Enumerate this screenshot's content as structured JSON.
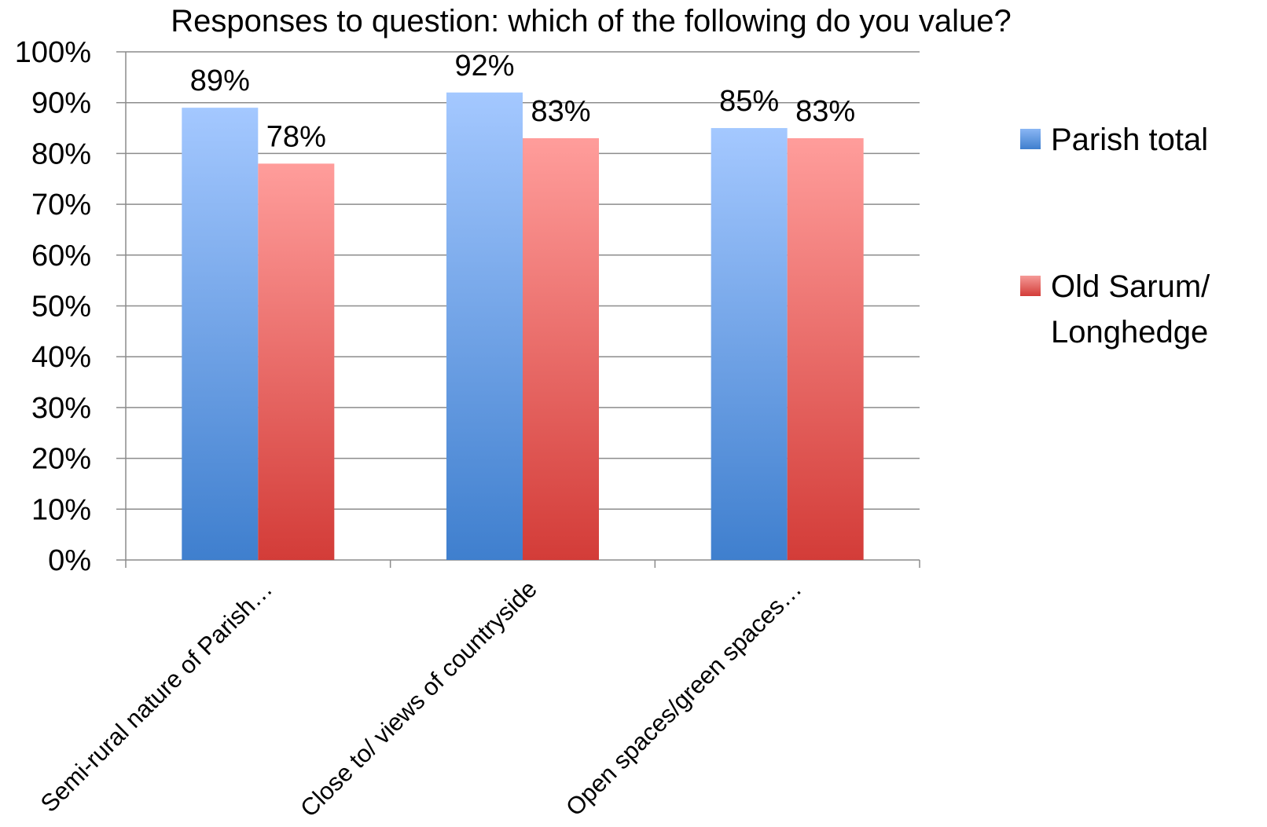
{
  "colors": {
    "series": [
      {
        "top": "#a4c8ff",
        "bottom": "#3f7fce",
        "legend_top": "#8ab6f4",
        "legend_bottom": "#3f7fce"
      },
      {
        "top": "#ff9d9b",
        "bottom": "#d33c38",
        "legend_top": "#f59a97",
        "legend_bottom": "#d33c38"
      }
    ],
    "grid": "#8c8c8c",
    "axis": "#8c8c8c"
  },
  "chart_data": {
    "type": "bar",
    "title": "Responses to question: which of the following do you value?",
    "xlabel": "",
    "ylabel": "",
    "ylim": [
      0,
      100
    ],
    "yticks": [
      "0%",
      "10%",
      "20%",
      "30%",
      "40%",
      "50%",
      "60%",
      "70%",
      "80%",
      "90%",
      "100%"
    ],
    "grid": true,
    "legend_position": "right",
    "categories": [
      "Semi-rural nature of Parish…",
      "Close to/ views of countryside",
      "Open spaces/green spaces…"
    ],
    "series": [
      {
        "name": "Parish total",
        "values": [
          89,
          92,
          85
        ],
        "labels": [
          "89%",
          "92%",
          "85%"
        ]
      },
      {
        "name": "Old Sarum/ Longhedge",
        "name_lines": [
          "Old Sarum/",
          "Longhedge"
        ],
        "values": [
          78,
          83,
          83
        ],
        "labels": [
          "78%",
          "83%",
          "83%"
        ]
      }
    ]
  }
}
